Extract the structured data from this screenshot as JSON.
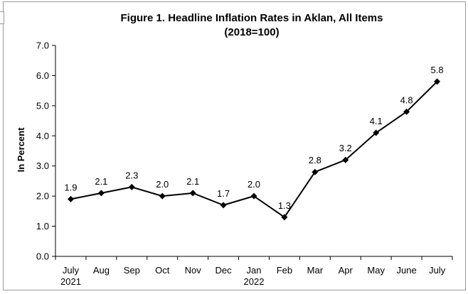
{
  "chart_data": {
    "type": "line",
    "title": "Figure 1. Headline Inflation Rates in Aklan, All Items",
    "subtitle": "(2018=100)",
    "ylabel": "In Percent",
    "xlabel": "",
    "ylim": [
      0,
      7
    ],
    "yticks": [
      "0.0",
      "1.0",
      "2.0",
      "3.0",
      "4.0",
      "5.0",
      "6.0",
      "7.0"
    ],
    "categories": [
      "July",
      "Aug",
      "Sep",
      "Oct",
      "Nov",
      "Dec",
      "Jan",
      "Feb",
      "Mar",
      "Apr",
      "May",
      "June",
      "July"
    ],
    "year_labels": [
      {
        "text": "2021",
        "category_index": 0
      },
      {
        "text": "2022",
        "category_index": 6
      }
    ],
    "series": [
      {
        "values": [
          1.9,
          2.1,
          2.3,
          2.0,
          2.1,
          1.7,
          2.0,
          1.3,
          2.8,
          3.2,
          4.1,
          4.8,
          5.8
        ],
        "labels": [
          "1.9",
          "2.1",
          "2.3",
          "2.0",
          "2.1",
          "1.7",
          "2.0",
          "1.3",
          "2.8",
          "3.2",
          "4.1",
          "4.8",
          "5.8"
        ],
        "color": "#000000",
        "marker": "diamond"
      }
    ],
    "grid": false,
    "legend": "none"
  }
}
